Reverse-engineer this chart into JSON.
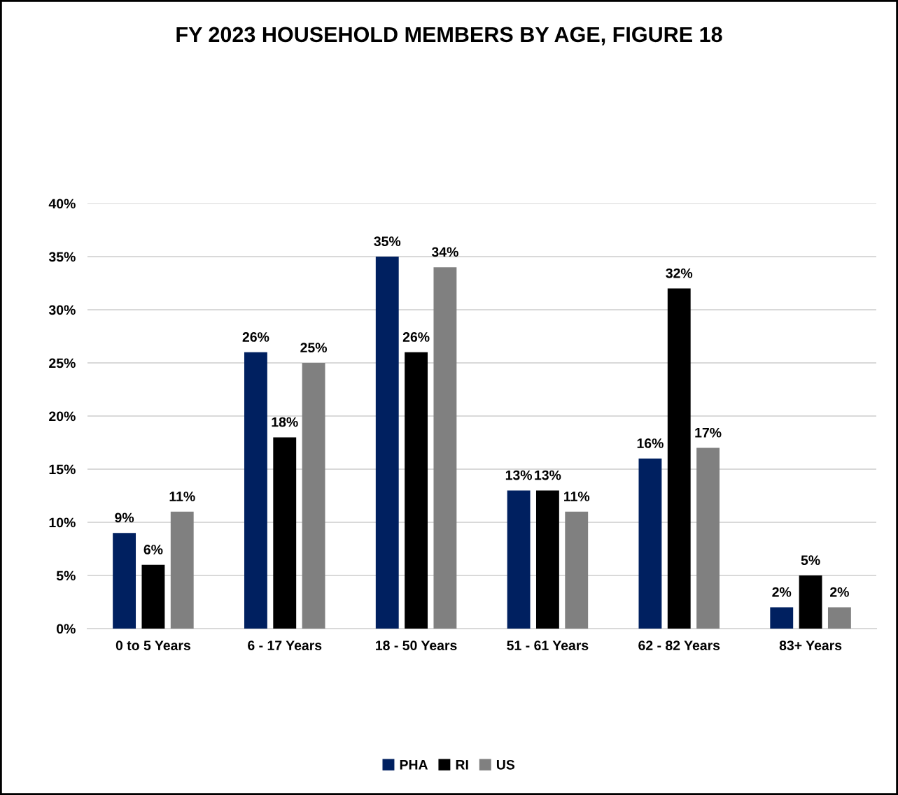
{
  "chart_data": {
    "type": "bar",
    "title": "FY 2023 HOUSEHOLD MEMBERS BY AGE, FIGURE 18",
    "categories": [
      "0 to 5 Years",
      "6 - 17 Years",
      "18 - 50 Years",
      "51 - 61 Years",
      "62 - 82 Years",
      "83+ Years"
    ],
    "series": [
      {
        "name": "PHA",
        "color": "#002060",
        "values": [
          9,
          26,
          35,
          13,
          16,
          2
        ],
        "value_labels": [
          "9%",
          "26%",
          "35%",
          "13%",
          "16%",
          "2%"
        ]
      },
      {
        "name": "RI",
        "color": "#000000",
        "values": [
          6,
          18,
          26,
          13,
          32,
          5
        ],
        "value_labels": [
          "6%",
          "18%",
          "26%",
          "13%",
          "32%",
          "5%"
        ]
      },
      {
        "name": "US",
        "color": "#808080",
        "values": [
          11,
          25,
          34,
          11,
          17,
          2
        ],
        "value_labels": [
          "11%",
          "25%",
          "34%",
          "11%",
          "17%",
          "2%"
        ]
      }
    ],
    "ylim": [
      0,
      40
    ],
    "yticks": [
      {
        "value": 0,
        "label": "0%"
      },
      {
        "value": 5,
        "label": "5%"
      },
      {
        "value": 10,
        "label": "10%"
      },
      {
        "value": 15,
        "label": "15%"
      },
      {
        "value": 20,
        "label": "20%"
      },
      {
        "value": 25,
        "label": "25%"
      },
      {
        "value": 30,
        "label": "30%"
      },
      {
        "value": 35,
        "label": "35%"
      },
      {
        "value": 40,
        "label": "40%"
      }
    ],
    "grid": "y",
    "legend": "bottom"
  }
}
